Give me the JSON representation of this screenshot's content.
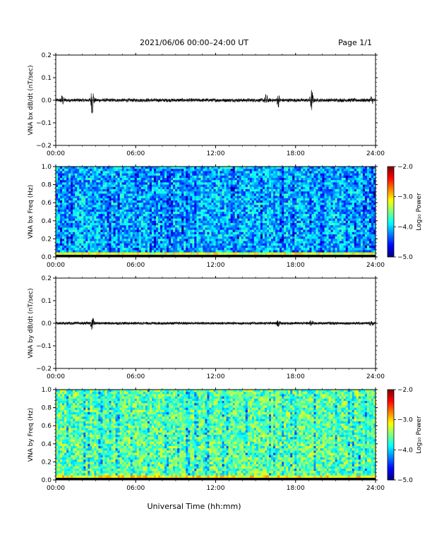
{
  "header": {
    "title": "2021/06/06  00:00–24:00 UT",
    "page": "Page 1/1"
  },
  "xlabel": "Universal Time (hh:mm)",
  "colors": {
    "trace": "#000000",
    "axis": "#000000",
    "background": "#ffffff"
  },
  "chart_data": [
    {
      "type": "line",
      "ylabel": "VNA bx dB/dt (nT/sec)",
      "x_range_hours": [
        0,
        24
      ],
      "xticks": [
        "00:00",
        "06:00",
        "12:00",
        "18:00",
        "24:00"
      ],
      "ylim": [
        -0.2,
        0.2
      ],
      "yticks": [
        "0.2",
        "0.1",
        "0.0",
        "−0.1",
        "−0.2"
      ],
      "baseline": 0.0,
      "noise_amplitude": 0.008,
      "bursts": [
        {
          "hour": 0.5,
          "amplitude": 0.02
        },
        {
          "hour": 2.75,
          "amplitude": 0.065
        },
        {
          "hour": 15.8,
          "amplitude": 0.025
        },
        {
          "hour": 16.7,
          "amplitude": 0.025
        },
        {
          "hour": 19.2,
          "amplitude": 0.045
        },
        {
          "hour": 23.7,
          "amplitude": 0.015
        }
      ],
      "grid": false
    },
    {
      "type": "heatmap",
      "ylabel": "VNA bx Freq (Hz)",
      "x_range_hours": [
        0,
        24
      ],
      "xticks": [
        "00:00",
        "06:00",
        "12:00",
        "18:00",
        "24:00"
      ],
      "ylim": [
        0.0,
        1.0
      ],
      "yticks": [
        "1.0",
        "0.8",
        "0.6",
        "0.4",
        "0.2",
        "0.0"
      ],
      "colorbar": {
        "label": "Log₁₀ Power",
        "range": [
          -5.0,
          -2.0
        ],
        "ticks": [
          "−2.0",
          "−3.0",
          "−4.0",
          "−5.0"
        ]
      },
      "typical_log_power": -4.1,
      "low_freq_log_power": -3.2,
      "grid": false
    },
    {
      "type": "line",
      "ylabel": "VNA by dB/dt (nT/sec)",
      "x_range_hours": [
        0,
        24
      ],
      "xticks": [
        "00:00",
        "06:00",
        "12:00",
        "18:00",
        "24:00"
      ],
      "ylim": [
        -0.2,
        0.2
      ],
      "yticks": [
        "0.2",
        "0.1",
        "0.0",
        "−0.1",
        "−0.2"
      ],
      "baseline": 0.0,
      "noise_amplitude": 0.006,
      "bursts": [
        {
          "hour": 2.75,
          "amplitude": 0.035
        },
        {
          "hour": 16.7,
          "amplitude": 0.012
        },
        {
          "hour": 19.2,
          "amplitude": 0.015
        },
        {
          "hour": 23.7,
          "amplitude": 0.012
        }
      ],
      "grid": false
    },
    {
      "type": "heatmap",
      "ylabel": "VNA by Freq (Hz)",
      "x_range_hours": [
        0,
        24
      ],
      "xticks": [
        "00:00",
        "06:00",
        "12:00",
        "18:00",
        "24:00"
      ],
      "ylim": [
        0.0,
        1.0
      ],
      "yticks": [
        "1.0",
        "0.8",
        "0.6",
        "0.4",
        "0.2",
        "0.0"
      ],
      "colorbar": {
        "label": "Log₁₀ Power",
        "range": [
          -5.0,
          -2.0
        ],
        "ticks": [
          "−2.0",
          "−3.0",
          "−4.0",
          "−5.0"
        ]
      },
      "typical_log_power": -3.6,
      "low_freq_log_power": -3.1,
      "grid": false
    }
  ]
}
